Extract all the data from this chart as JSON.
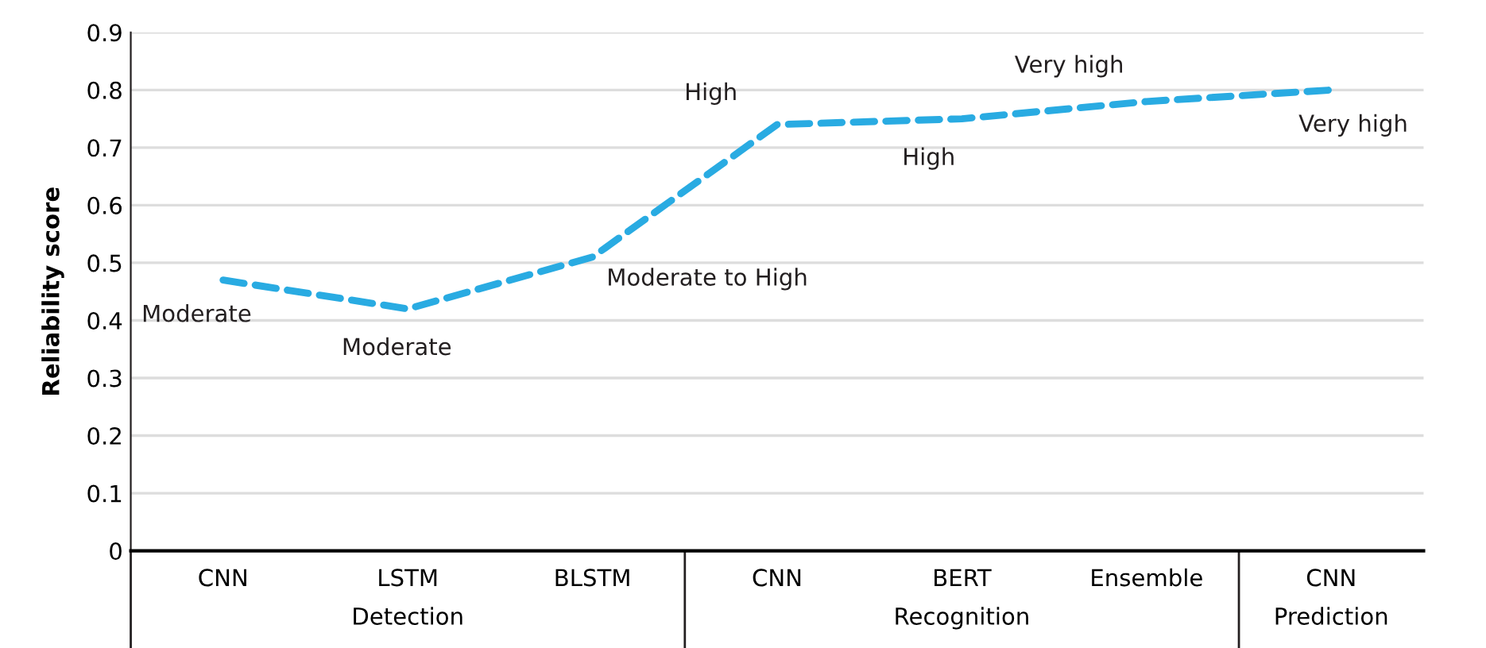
{
  "chart_data": {
    "type": "line",
    "ylabel": "Reliability score",
    "categories": [
      "CNN",
      "LSTM",
      "BLSTM",
      "CNN",
      "BERT",
      "Ensemble",
      "CNN"
    ],
    "series": [
      {
        "color": "#29abe2",
        "values": [
          0.47,
          0.42,
          0.51,
          0.74,
          0.75,
          0.78,
          0.8
        ],
        "value_labels": [
          "Moderate",
          "Moderate",
          "Moderate to High",
          "High",
          "High",
          "Very high",
          "Very high"
        ]
      }
    ],
    "annotations": [
      "Detection",
      "Recognition",
      "Prediction"
    ],
    "ylim": [
      0,
      0.9
    ],
    "yticks": [
      0,
      0.1,
      0.2,
      0.3,
      0.4,
      0.5,
      0.6,
      0.7,
      0.8,
      0.9
    ],
    "grid": "y",
    "line_style": "dashed",
    "marker": "none"
  }
}
